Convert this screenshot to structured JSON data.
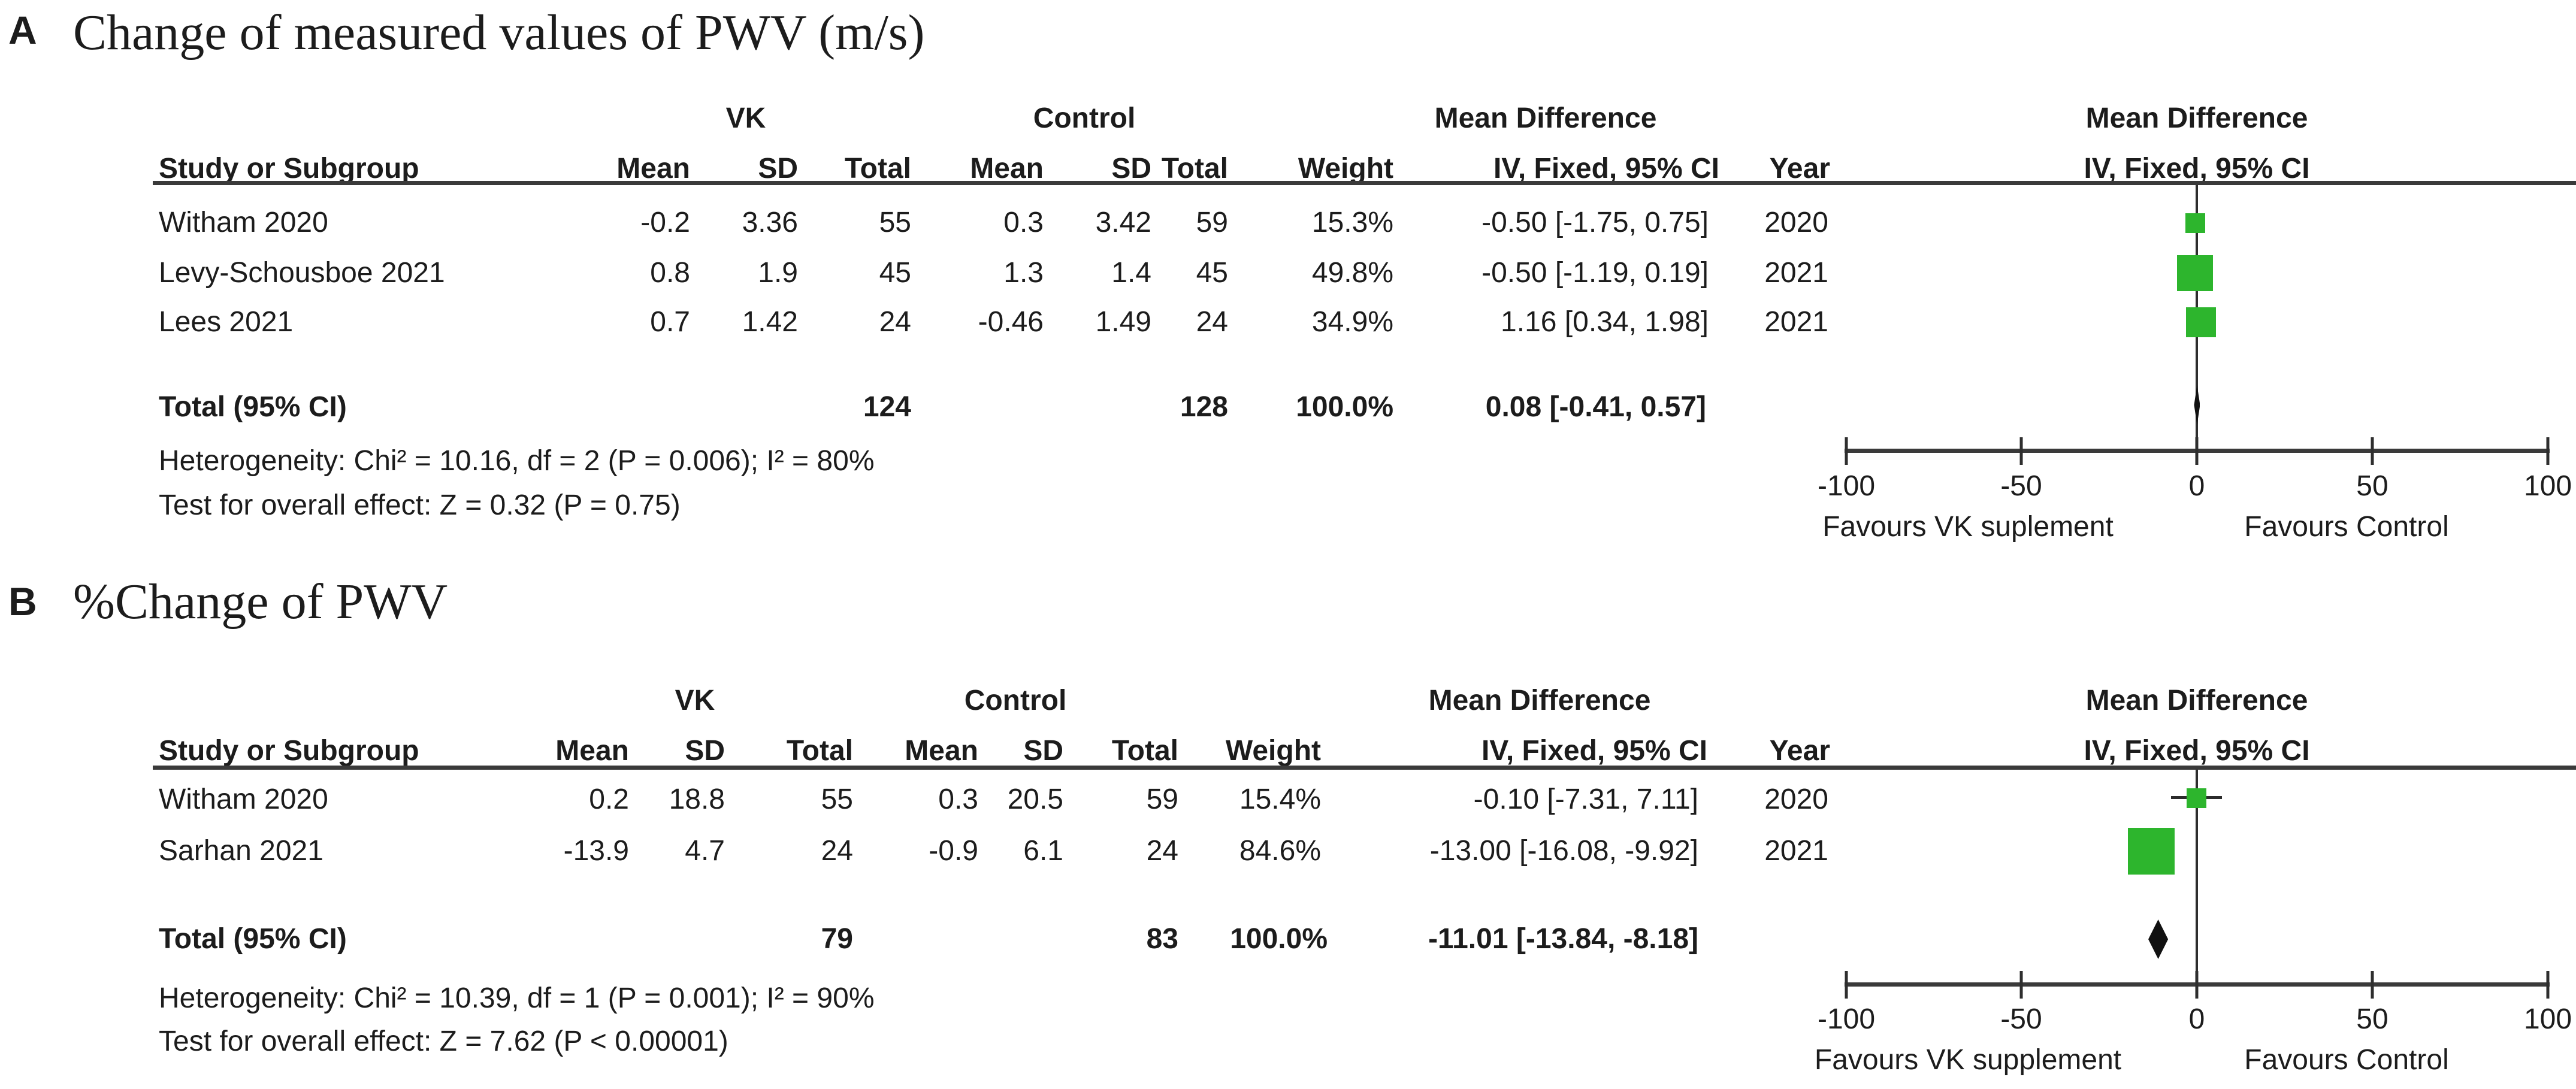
{
  "accent_color": "#2DB52D",
  "diamond_color": "#111111",
  "line_color": "#3a3a3a",
  "panel_a": {
    "label": "A",
    "title": "Change of measured values of PWV (m/s)",
    "group_headers": {
      "vk": "VK",
      "control": "Control",
      "mean_difference": "Mean Difference"
    },
    "columns": {
      "study": "Study or Subgroup",
      "mean": "Mean",
      "sd": "SD",
      "total": "Total",
      "weight": "Weight",
      "ci": "IV, Fixed, 95% CI",
      "year": "Year"
    },
    "plot_header": {
      "line1": "Mean Difference",
      "line2": "IV, Fixed, 95% CI"
    },
    "rows": [
      {
        "study": "Witham 2020",
        "vk_mean": "-0.2",
        "vk_sd": "3.36",
        "vk_total": "55",
        "ctrl_mean": "0.3",
        "ctrl_sd": "3.42",
        "ctrl_total": "59",
        "weight": "15.3%",
        "ci_text": "-0.50 [-1.75, 0.75]",
        "year": "2020"
      },
      {
        "study": "Levy-Schousboe 2021",
        "vk_mean": "0.8",
        "vk_sd": "1.9",
        "vk_total": "45",
        "ctrl_mean": "1.3",
        "ctrl_sd": "1.4",
        "ctrl_total": "45",
        "weight": "49.8%",
        "ci_text": "-0.50 [-1.19, 0.19]",
        "year": "2021"
      },
      {
        "study": "Lees 2021",
        "vk_mean": "0.7",
        "vk_sd": "1.42",
        "vk_total": "24",
        "ctrl_mean": "-0.46",
        "ctrl_sd": "1.49",
        "ctrl_total": "24",
        "weight": "34.9%",
        "ci_text": "1.16 [0.34, 1.98]",
        "year": "2021"
      }
    ],
    "total": {
      "label": "Total (95% CI)",
      "vk_total": "124",
      "ctrl_total": "128",
      "weight": "100.0%",
      "ci_text": "0.08 [-0.41, 0.57]"
    },
    "heterogeneity": "Heterogeneity: Chi² = 10.16, df = 2 (P = 0.006); I² = 80%",
    "overall_effect": "Test for overall effect: Z = 0.32 (P = 0.75)",
    "axis": {
      "tick_labels": [
        "-100",
        "-50",
        "0",
        "50",
        "100"
      ],
      "favours_left": "Favours VK suplement",
      "favours_right": "Favours Control"
    }
  },
  "panel_b": {
    "label": "B",
    "title": "%Change of PWV",
    "group_headers": {
      "vk": "VK",
      "control": "Control",
      "mean_difference": "Mean Difference"
    },
    "columns": {
      "study": "Study or Subgroup",
      "mean": "Mean",
      "sd": "SD",
      "total": "Total",
      "weight": "Weight",
      "ci": "IV, Fixed, 95% CI",
      "year": "Year"
    },
    "plot_header": {
      "line1": "Mean Difference",
      "line2": "IV, Fixed, 95% CI"
    },
    "rows": [
      {
        "study": "Witham 2020",
        "vk_mean": "0.2",
        "vk_sd": "18.8",
        "vk_total": "55",
        "ctrl_mean": "0.3",
        "ctrl_sd": "20.5",
        "ctrl_total": "59",
        "weight": "15.4%",
        "ci_text": "-0.10 [-7.31, 7.11]",
        "year": "2020"
      },
      {
        "study": "Sarhan 2021",
        "vk_mean": "-13.9",
        "vk_sd": "4.7",
        "vk_total": "24",
        "ctrl_mean": "-0.9",
        "ctrl_sd": "6.1",
        "ctrl_total": "24",
        "weight": "84.6%",
        "ci_text": "-13.00 [-16.08, -9.92]",
        "year": "2021"
      }
    ],
    "total": {
      "label": "Total (95% CI)",
      "vk_total": "79",
      "ctrl_total": "83",
      "weight": "100.0%",
      "ci_text": "-11.01 [-13.84, -8.18]"
    },
    "heterogeneity": "Heterogeneity: Chi² = 10.39, df = 1 (P = 0.001); I² = 90%",
    "overall_effect": "Test for overall effect: Z = 7.62 (P < 0.00001)",
    "axis": {
      "tick_labels": [
        "-100",
        "-50",
        "0",
        "50",
        "100"
      ],
      "favours_left": "Favours VK supplement",
      "favours_right": "Favours Control"
    }
  },
  "chart_data": [
    {
      "type": "scatter",
      "subtype": "forest-plot",
      "title": "Change of measured values of PWV (m/s)",
      "effect_measure": "Mean Difference (IV, Fixed, 95% CI)",
      "xlim": [
        -100,
        100
      ],
      "xticks": [
        -100,
        -50,
        0,
        50,
        100
      ],
      "favours_left": "Favours VK suplement",
      "favours_right": "Favours Control",
      "studies": [
        {
          "name": "Witham 2020",
          "year": 2020,
          "md": -0.5,
          "ci_low": -1.75,
          "ci_high": 0.75,
          "weight_pct": 15.3,
          "vk": {
            "mean": -0.2,
            "sd": 3.36,
            "n": 55
          },
          "control": {
            "mean": 0.3,
            "sd": 3.42,
            "n": 59
          }
        },
        {
          "name": "Levy-Schousboe 2021",
          "year": 2021,
          "md": -0.5,
          "ci_low": -1.19,
          "ci_high": 0.19,
          "weight_pct": 49.8,
          "vk": {
            "mean": 0.8,
            "sd": 1.9,
            "n": 45
          },
          "control": {
            "mean": 1.3,
            "sd": 1.4,
            "n": 45
          }
        },
        {
          "name": "Lees 2021",
          "year": 2021,
          "md": 1.16,
          "ci_low": 0.34,
          "ci_high": 1.98,
          "weight_pct": 34.9,
          "vk": {
            "mean": 0.7,
            "sd": 1.42,
            "n": 24
          },
          "control": {
            "mean": -0.46,
            "sd": 1.49,
            "n": 24
          }
        }
      ],
      "total": {
        "md": 0.08,
        "ci_low": -0.41,
        "ci_high": 0.57,
        "n_vk": 124,
        "n_control": 128,
        "weight_pct": 100.0
      },
      "heterogeneity": {
        "chi2": 10.16,
        "df": 2,
        "p": 0.006,
        "i2_pct": 80
      },
      "overall_effect": {
        "z": 0.32,
        "p": 0.75
      }
    },
    {
      "type": "scatter",
      "subtype": "forest-plot",
      "title": "%Change of PWV",
      "effect_measure": "Mean Difference (IV, Fixed, 95% CI)",
      "xlim": [
        -100,
        100
      ],
      "xticks": [
        -100,
        -50,
        0,
        50,
        100
      ],
      "favours_left": "Favours VK supplement",
      "favours_right": "Favours Control",
      "studies": [
        {
          "name": "Witham 2020",
          "year": 2020,
          "md": -0.1,
          "ci_low": -7.31,
          "ci_high": 7.11,
          "weight_pct": 15.4,
          "vk": {
            "mean": 0.2,
            "sd": 18.8,
            "n": 55
          },
          "control": {
            "mean": 0.3,
            "sd": 20.5,
            "n": 59
          }
        },
        {
          "name": "Sarhan 2021",
          "year": 2021,
          "md": -13.0,
          "ci_low": -16.08,
          "ci_high": -9.92,
          "weight_pct": 84.6,
          "vk": {
            "mean": -13.9,
            "sd": 4.7,
            "n": 24
          },
          "control": {
            "mean": -0.9,
            "sd": 6.1,
            "n": 24
          }
        }
      ],
      "total": {
        "md": -11.01,
        "ci_low": -13.84,
        "ci_high": -8.18,
        "n_vk": 79,
        "n_control": 83,
        "weight_pct": 100.0
      },
      "heterogeneity": {
        "chi2": 10.39,
        "df": 1,
        "p": 0.001,
        "i2_pct": 90
      },
      "overall_effect": {
        "z": 7.62,
        "p": 1e-05
      }
    }
  ]
}
